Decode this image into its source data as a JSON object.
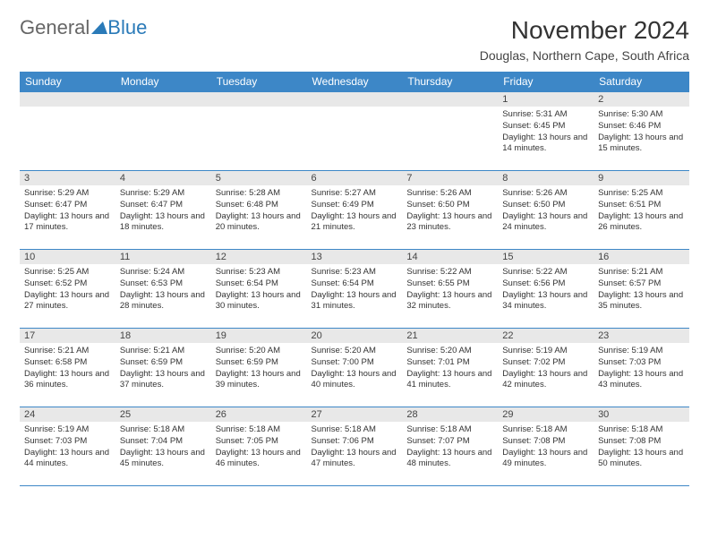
{
  "logo": {
    "part1": "General",
    "part2": "Blue"
  },
  "title": "November 2024",
  "location": "Douglas, Northern Cape, South Africa",
  "colors": {
    "header_bg": "#3d87c7",
    "header_fg": "#ffffff",
    "daynum_bg": "#e8e8e8",
    "border": "#3d87c7",
    "logo_accent": "#2a7ab8"
  },
  "day_headers": [
    "Sunday",
    "Monday",
    "Tuesday",
    "Wednesday",
    "Thursday",
    "Friday",
    "Saturday"
  ],
  "labels": {
    "sunrise": "Sunrise:",
    "sunset": "Sunset:",
    "daylight": "Daylight:"
  },
  "weeks": [
    [
      null,
      null,
      null,
      null,
      null,
      {
        "d": "1",
        "sr": "5:31 AM",
        "ss": "6:45 PM",
        "dl": "13 hours and 14 minutes."
      },
      {
        "d": "2",
        "sr": "5:30 AM",
        "ss": "6:46 PM",
        "dl": "13 hours and 15 minutes."
      }
    ],
    [
      {
        "d": "3",
        "sr": "5:29 AM",
        "ss": "6:47 PM",
        "dl": "13 hours and 17 minutes."
      },
      {
        "d": "4",
        "sr": "5:29 AM",
        "ss": "6:47 PM",
        "dl": "13 hours and 18 minutes."
      },
      {
        "d": "5",
        "sr": "5:28 AM",
        "ss": "6:48 PM",
        "dl": "13 hours and 20 minutes."
      },
      {
        "d": "6",
        "sr": "5:27 AM",
        "ss": "6:49 PM",
        "dl": "13 hours and 21 minutes."
      },
      {
        "d": "7",
        "sr": "5:26 AM",
        "ss": "6:50 PM",
        "dl": "13 hours and 23 minutes."
      },
      {
        "d": "8",
        "sr": "5:26 AM",
        "ss": "6:50 PM",
        "dl": "13 hours and 24 minutes."
      },
      {
        "d": "9",
        "sr": "5:25 AM",
        "ss": "6:51 PM",
        "dl": "13 hours and 26 minutes."
      }
    ],
    [
      {
        "d": "10",
        "sr": "5:25 AM",
        "ss": "6:52 PM",
        "dl": "13 hours and 27 minutes."
      },
      {
        "d": "11",
        "sr": "5:24 AM",
        "ss": "6:53 PM",
        "dl": "13 hours and 28 minutes."
      },
      {
        "d": "12",
        "sr": "5:23 AM",
        "ss": "6:54 PM",
        "dl": "13 hours and 30 minutes."
      },
      {
        "d": "13",
        "sr": "5:23 AM",
        "ss": "6:54 PM",
        "dl": "13 hours and 31 minutes."
      },
      {
        "d": "14",
        "sr": "5:22 AM",
        "ss": "6:55 PM",
        "dl": "13 hours and 32 minutes."
      },
      {
        "d": "15",
        "sr": "5:22 AM",
        "ss": "6:56 PM",
        "dl": "13 hours and 34 minutes."
      },
      {
        "d": "16",
        "sr": "5:21 AM",
        "ss": "6:57 PM",
        "dl": "13 hours and 35 minutes."
      }
    ],
    [
      {
        "d": "17",
        "sr": "5:21 AM",
        "ss": "6:58 PM",
        "dl": "13 hours and 36 minutes."
      },
      {
        "d": "18",
        "sr": "5:21 AM",
        "ss": "6:59 PM",
        "dl": "13 hours and 37 minutes."
      },
      {
        "d": "19",
        "sr": "5:20 AM",
        "ss": "6:59 PM",
        "dl": "13 hours and 39 minutes."
      },
      {
        "d": "20",
        "sr": "5:20 AM",
        "ss": "7:00 PM",
        "dl": "13 hours and 40 minutes."
      },
      {
        "d": "21",
        "sr": "5:20 AM",
        "ss": "7:01 PM",
        "dl": "13 hours and 41 minutes."
      },
      {
        "d": "22",
        "sr": "5:19 AM",
        "ss": "7:02 PM",
        "dl": "13 hours and 42 minutes."
      },
      {
        "d": "23",
        "sr": "5:19 AM",
        "ss": "7:03 PM",
        "dl": "13 hours and 43 minutes."
      }
    ],
    [
      {
        "d": "24",
        "sr": "5:19 AM",
        "ss": "7:03 PM",
        "dl": "13 hours and 44 minutes."
      },
      {
        "d": "25",
        "sr": "5:18 AM",
        "ss": "7:04 PM",
        "dl": "13 hours and 45 minutes."
      },
      {
        "d": "26",
        "sr": "5:18 AM",
        "ss": "7:05 PM",
        "dl": "13 hours and 46 minutes."
      },
      {
        "d": "27",
        "sr": "5:18 AM",
        "ss": "7:06 PM",
        "dl": "13 hours and 47 minutes."
      },
      {
        "d": "28",
        "sr": "5:18 AM",
        "ss": "7:07 PM",
        "dl": "13 hours and 48 minutes."
      },
      {
        "d": "29",
        "sr": "5:18 AM",
        "ss": "7:08 PM",
        "dl": "13 hours and 49 minutes."
      },
      {
        "d": "30",
        "sr": "5:18 AM",
        "ss": "7:08 PM",
        "dl": "13 hours and 50 minutes."
      }
    ]
  ]
}
